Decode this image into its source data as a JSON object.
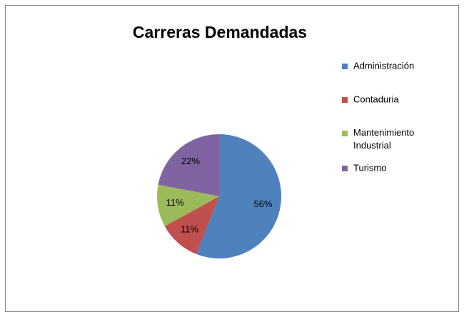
{
  "chart_data": {
    "type": "pie",
    "title": "Carreras Demandadas",
    "categories": [
      "Administración",
      "Contaduria",
      "Mantenimiento Industrial",
      "Turismo"
    ],
    "values": [
      56,
      11,
      11,
      22
    ],
    "value_labels": [
      "56%",
      "11%",
      "11%",
      "22%"
    ],
    "colors": [
      "#4f81bd",
      "#c0504d",
      "#9bbb59",
      "#8064a2"
    ],
    "legend": "right"
  }
}
